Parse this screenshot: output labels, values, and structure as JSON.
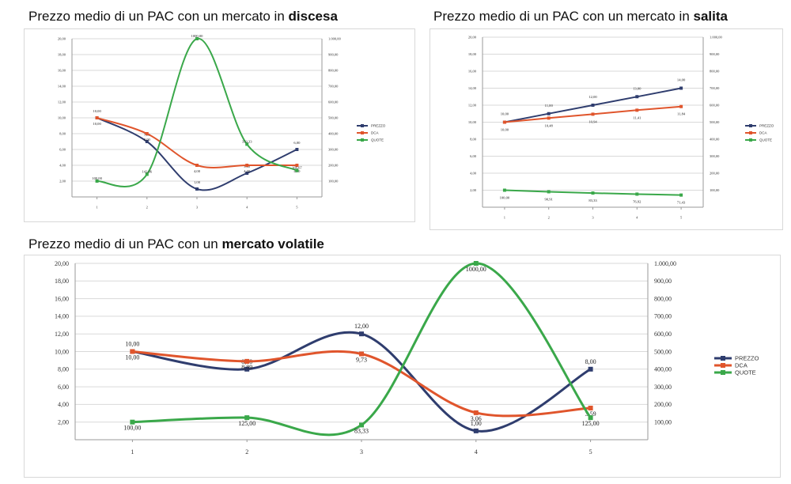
{
  "titles": [
    {
      "prefix": "Prezzo medio di un PAC con un mercato in ",
      "bold": "discesa"
    },
    {
      "prefix": "Prezzo medio di un PAC con un mercato in ",
      "bold": "salita"
    },
    {
      "prefix": "Prezzo medio di un PAC con un ",
      "bold": "mercato volatile"
    }
  ],
  "colors": {
    "PREZZO": "#2f3d6e",
    "DCA": "#e0552c",
    "QUOTE": "#3aa84a",
    "grid": "#d9d9d9"
  },
  "chart_data": [
    {
      "type": "line",
      "title": "Prezzo medio di un PAC con un mercato in discesa",
      "x": [
        1,
        2,
        3,
        4,
        5
      ],
      "x_tick_labels": [
        "1",
        "2",
        "3",
        "4",
        "5"
      ],
      "ylim": [
        0,
        20
      ],
      "y_step": 2,
      "y_tick_labels": [
        "2,00",
        "4,00",
        "6,00",
        "8,00",
        "10,00",
        "12,00",
        "14,00",
        "16,00",
        "18,00",
        "20,00"
      ],
      "y2lim": [
        0,
        1000
      ],
      "y2_step": 100,
      "y2_tick_labels": [
        "100,00",
        "200,00",
        "300,00",
        "400,00",
        "500,00",
        "600,00",
        "700,00",
        "800,00",
        "900,00",
        "1.000,00"
      ],
      "series": [
        {
          "name": "PREZZO",
          "axis": "left",
          "values": [
            10,
            7,
            1,
            3,
            6
          ],
          "labels": [
            "10,00",
            "7,00",
            "1,00",
            "3,00",
            "6,00"
          ]
        },
        {
          "name": "DCA",
          "axis": "left",
          "values": [
            10,
            8,
            4,
            4,
            4
          ],
          "labels": [
            "10,00",
            "8,00",
            "4,00",
            "4,00",
            "4,00"
          ]
        },
        {
          "name": "QUOTE",
          "axis": "right",
          "values": [
            100,
            143,
            1000,
            333,
            167
          ],
          "labels": [
            "100,00",
            "142,86",
            "1000,00",
            "333,33",
            "166,67"
          ]
        }
      ],
      "legend": "right",
      "grid": true
    },
    {
      "type": "line",
      "title": "Prezzo medio di un PAC con un mercato in salita",
      "x": [
        1,
        2,
        3,
        4,
        5
      ],
      "x_tick_labels": [
        "1",
        "2",
        "3",
        "4",
        "5"
      ],
      "ylim": [
        0,
        20
      ],
      "y_step": 2,
      "y_tick_labels": [
        "2,00",
        "4,00",
        "6,00",
        "8,00",
        "10,00",
        "12,00",
        "14,00",
        "16,00",
        "18,00",
        "20,00"
      ],
      "y2lim": [
        0,
        1000
      ],
      "y2_step": 100,
      "y2_tick_labels": [
        "100,00",
        "200,00",
        "300,00",
        "400,00",
        "500,00",
        "600,00",
        "700,00",
        "800,00",
        "900,00",
        "1.000,00"
      ],
      "series": [
        {
          "name": "PREZZO",
          "axis": "left",
          "values": [
            10,
            11,
            12,
            13,
            14
          ],
          "labels": [
            "10,00",
            "11,00",
            "12,00",
            "13,00",
            "14,00"
          ]
        },
        {
          "name": "DCA",
          "axis": "left",
          "values": [
            10,
            10.48,
            10.94,
            11.41,
            11.84
          ],
          "labels": [
            "10,00",
            "10,48",
            "10,94",
            "11,41",
            "11,84"
          ]
        },
        {
          "name": "QUOTE",
          "axis": "right",
          "values": [
            100,
            90.91,
            83.33,
            76.92,
            71.43
          ],
          "labels": [
            "100,00",
            "90,91",
            "83,33",
            "76,92",
            "71,43"
          ]
        }
      ],
      "legend": "right",
      "grid": true
    },
    {
      "type": "line",
      "title": "Prezzo medio di un PAC con un mercato volatile",
      "x": [
        1,
        2,
        3,
        4,
        5
      ],
      "x_tick_labels": [
        "1",
        "2",
        "3",
        "4",
        "5"
      ],
      "ylim": [
        0,
        20
      ],
      "y_step": 2,
      "y_tick_labels": [
        "2,00",
        "4,00",
        "6,00",
        "8,00",
        "10,00",
        "12,00",
        "14,00",
        "16,00",
        "18,00",
        "20,00"
      ],
      "y2lim": [
        0,
        1000
      ],
      "y2_step": 100,
      "y2_tick_labels": [
        "100,00",
        "200,00",
        "300,00",
        "400,00",
        "500,00",
        "600,00",
        "700,00",
        "800,00",
        "900,00",
        "1.000,00"
      ],
      "series": [
        {
          "name": "PREZZO",
          "axis": "left",
          "values": [
            10,
            8,
            12,
            1,
            8
          ],
          "labels": [
            "10,00",
            "8,00",
            "12,00",
            "1,00",
            "8,00"
          ]
        },
        {
          "name": "DCA",
          "axis": "left",
          "values": [
            10,
            8.89,
            9.73,
            3.06,
            3.59
          ],
          "labels": [
            "10,00",
            "8,89",
            "9,73",
            "3,06",
            "3,59"
          ]
        },
        {
          "name": "QUOTE",
          "axis": "right",
          "values": [
            100,
            125,
            83.33,
            1000,
            125
          ],
          "labels": [
            "100,00",
            "125,00",
            "83,33",
            "1000,00",
            "125,00"
          ]
        }
      ],
      "legend": "right",
      "grid": true
    }
  ]
}
